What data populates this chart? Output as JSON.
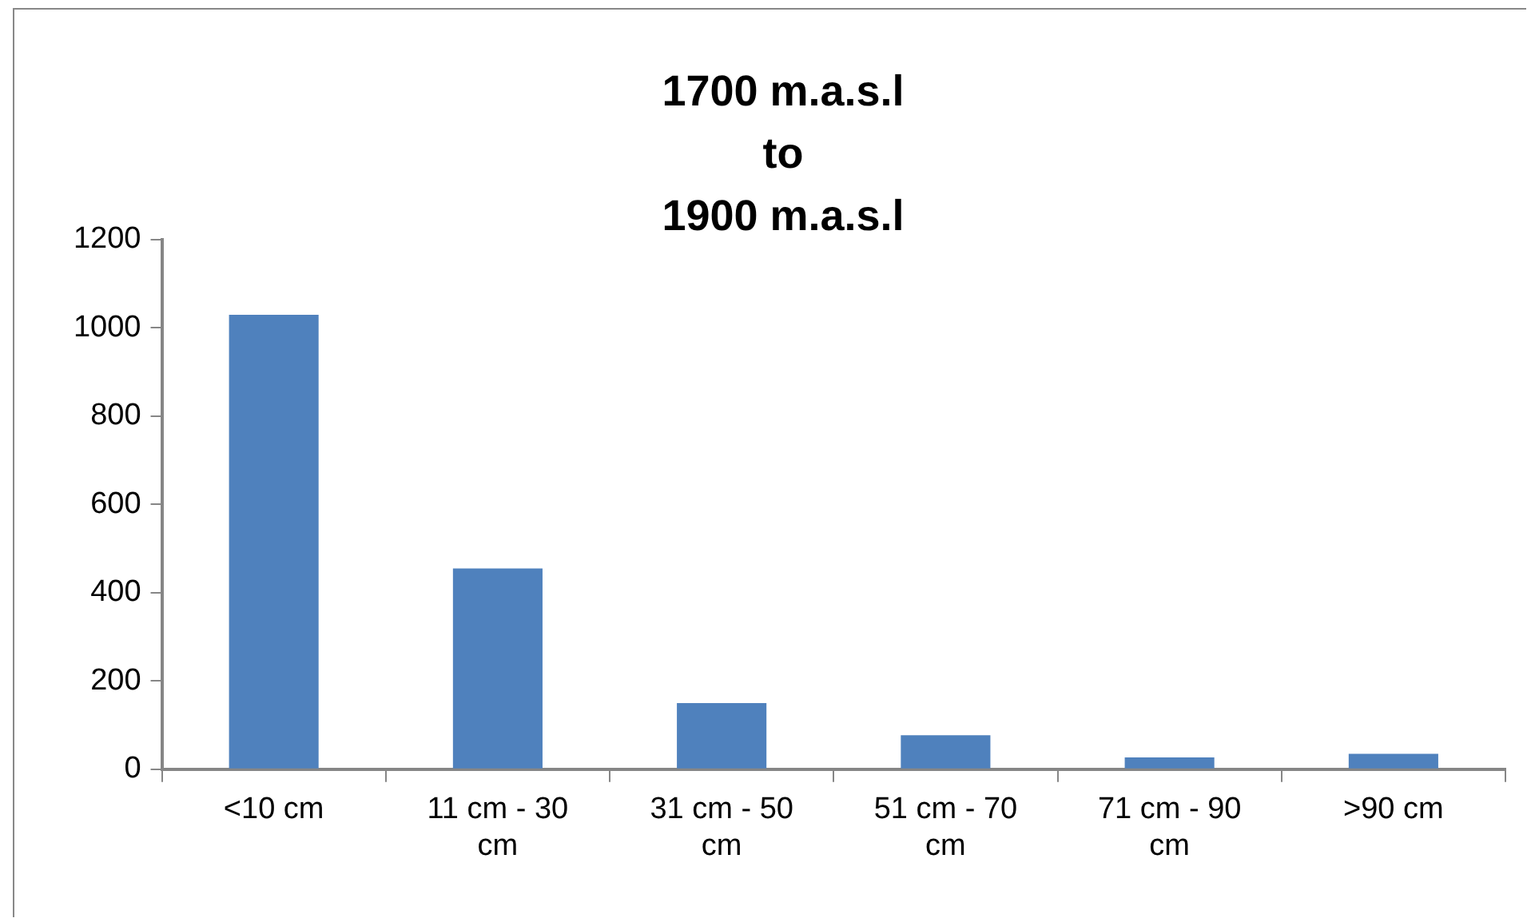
{
  "chart_data": {
    "type": "bar",
    "title": "1700 m.a.s.l\nto\n1900 m.a.s.l",
    "categories": [
      "<10 cm",
      "11 cm - 30 cm",
      "31 cm - 50 cm",
      "51 cm - 70 cm",
      "71 cm - 90 cm",
      ">90 cm"
    ],
    "values": [
      1030,
      455,
      150,
      77,
      27,
      35
    ],
    "color": "#4f81bd",
    "ylim": [
      0,
      1200
    ],
    "yticks": [
      0,
      200,
      400,
      600,
      800,
      1000,
      1200
    ],
    "grid": false,
    "legend": false
  }
}
